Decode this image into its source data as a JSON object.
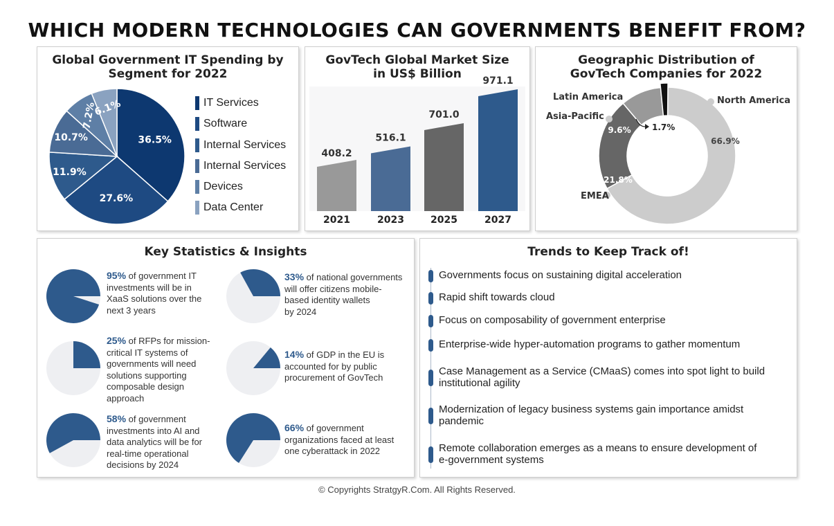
{
  "title": "WHICH MODERN TECHNOLOGIES CAN GOVERNMENTS BENEFIT FROM?",
  "footer": "© Copyrights StratgyR.Com. All Rights Reserved.",
  "colors": {
    "navy": "#0d3870",
    "mid_blue": "#1e4a82",
    "blue": "#2e5a8c",
    "steel": "#4a6b95",
    "slate": "#5e7fa6",
    "light_steel": "#8aa2c0",
    "gray_light": "#cccccc",
    "gray_mid": "#999999",
    "gray_dark": "#666666",
    "black": "#111111",
    "pie_bg": "#eeeff2"
  },
  "chart_data": [
    {
      "type": "pie",
      "title": "Global Government IT Spending by Segment for 2022",
      "categories": [
        "IT Services",
        "Software",
        "Internal Services",
        "Internal Services",
        "Devices",
        "Data Center"
      ],
      "values": [
        36.5,
        27.6,
        11.9,
        10.7,
        7.2,
        6.1
      ],
      "labels": [
        "36.5%",
        "27.6%",
        "11.9%",
        "10.7%",
        "7.2%",
        "6.1%"
      ],
      "colors": [
        "#0d3870",
        "#1e4a82",
        "#2e5a8c",
        "#4a6b95",
        "#5e7fa6",
        "#8aa2c0"
      ],
      "legend": "right"
    },
    {
      "type": "bar",
      "title": "GovTech Global Market Size in US$ Billion",
      "categories": [
        "2021",
        "2023",
        "2025",
        "2027"
      ],
      "values": [
        408.2,
        516.1,
        701.0,
        971.1
      ],
      "labels": [
        "408.2",
        "516.1",
        "701.0",
        "971.1"
      ],
      "colors": [
        "#999999",
        "#4a6b95",
        "#666666",
        "#2e5a8c"
      ]
    },
    {
      "type": "pie",
      "title": "Geographic Distribution of GovTech Companies for 2022",
      "categories": [
        "North America",
        "EMEA",
        "Asia-Pacific",
        "Latin America"
      ],
      "values": [
        66.9,
        21.8,
        9.6,
        1.7
      ],
      "labels": [
        "66.9%",
        "21.8%",
        "9.6%",
        "1.7%"
      ],
      "colors": [
        "#cccccc",
        "#666666",
        "#999999",
        "#111111"
      ]
    }
  ],
  "stats": {
    "title": "Key Statistics & Insights",
    "items": [
      {
        "pct": "95%",
        "lines": [
          "of government IT",
          "investments will be in",
          "XaaS solutions over the",
          "next 3 years"
        ],
        "value": 95
      },
      {
        "pct": "33%",
        "lines": [
          "of national governments",
          "will offer citizens mobile-",
          "based identity wallets",
          "by 2024"
        ],
        "value": 33
      },
      {
        "pct": "25%",
        "lines": [
          "of RFPs for mission-",
          "critical IT systems of",
          "governments will need",
          "solutions supporting",
          "composable design",
          "approach"
        ],
        "value": 25
      },
      {
        "pct": "14%",
        "lines": [
          "of GDP in the EU is",
          "accounted for by public",
          "procurement of GovTech"
        ],
        "value": 14
      },
      {
        "pct": "58%",
        "lines": [
          "of government",
          "investments into AI and",
          "data analytics will be for",
          "real-time operational",
          "decisions by 2024"
        ],
        "value": 58
      },
      {
        "pct": "66%",
        "lines": [
          "of government",
          "organizations faced at least",
          "one cyberattack in 2022"
        ],
        "value": 66
      }
    ]
  },
  "trends": {
    "title": "Trends to Keep Track of!",
    "items": [
      [
        "Governments focus on sustaining digital acceleration"
      ],
      [
        "Rapid shift towards cloud"
      ],
      [
        "Focus on composability of government enterprise"
      ],
      [
        "Enterprise-wide hyper-automation programs to gather momentum"
      ],
      [
        "Case Management as a Service (CMaaS) comes into spot light to build",
        "institutional agility"
      ],
      [
        "Modernization of legacy business systems gain importance amidst",
        "pandemic"
      ],
      [
        "Remote collaboration emerges as a means to ensure development of",
        "e-government systems"
      ]
    ]
  }
}
